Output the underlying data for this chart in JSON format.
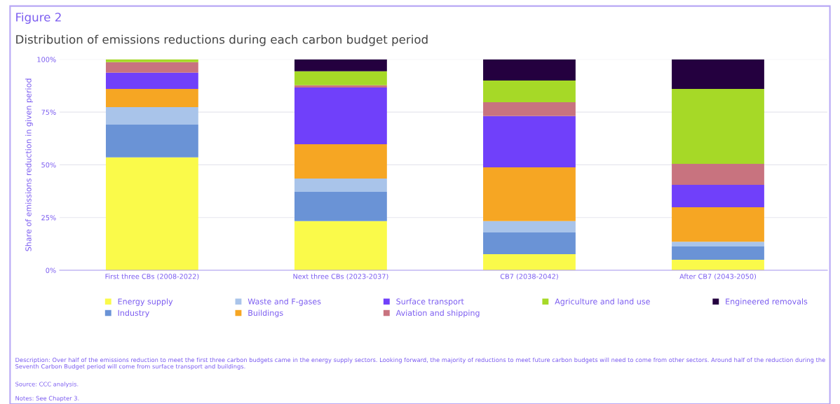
{
  "chart_data": {
    "type": "bar",
    "stacked": true,
    "title": "Figure 2",
    "subtitle": "Distribution of emissions reductions during each carbon budget period",
    "ylabel": "Share of emissions reduction in given period",
    "categories": [
      "First three CBs (2008-2022)",
      "Next three CBs (2023-2037)",
      "CB7 (2038-2042)",
      "After CB7 (2043-2050)"
    ],
    "series": [
      {
        "name": "Energy supply",
        "color": "#fafa4a",
        "values": [
          53.5,
          23.3,
          7.6,
          5.0
        ]
      },
      {
        "name": "Industry",
        "color": "#6a93d6",
        "values": [
          15.6,
          13.9,
          10.3,
          6.3
        ]
      },
      {
        "name": "Waste and F-gases",
        "color": "#a9c4ea",
        "values": [
          8.3,
          6.3,
          5.4,
          2.2
        ]
      },
      {
        "name": "Buildings",
        "color": "#f6a623",
        "values": [
          8.6,
          16.3,
          25.5,
          16.4
        ]
      },
      {
        "name": "Surface transport",
        "color": "#7040fa",
        "values": [
          7.7,
          26.9,
          24.3,
          10.6
        ]
      },
      {
        "name": "Aviation and shipping",
        "color": "#c8737f",
        "values": [
          5.0,
          1.0,
          6.6,
          10.0
        ]
      },
      {
        "name": "Agriculture and land use",
        "color": "#a6d927",
        "values": [
          1.3,
          6.7,
          10.3,
          35.5
        ]
      },
      {
        "name": "Engineered removals",
        "color": "#24003f",
        "values": [
          0,
          5.6,
          10.0,
          14.0
        ]
      }
    ],
    "ylim": [
      0,
      100
    ],
    "yticks": [
      {
        "value": 0,
        "label": "0%"
      },
      {
        "value": 25,
        "label": "25%"
      },
      {
        "value": 50,
        "label": "50%"
      },
      {
        "value": 75,
        "label": "75%"
      },
      {
        "value": 100,
        "label": "100%"
      }
    ],
    "grid": "y",
    "legend": "bottom",
    "annotations": [
      "Description: Over half of the emissions reduction to meet the first three carbon budgets came in the energy supply sectors. Looking forward, the majority of reductions to meet future carbon budgets will need to come from other sectors. Around half of the reduction during the Seventh Carbon Budget period will come from surface transport and buildings.",
      "Source: CCC analysis.",
      "Notes: See Chapter 3."
    ]
  }
}
